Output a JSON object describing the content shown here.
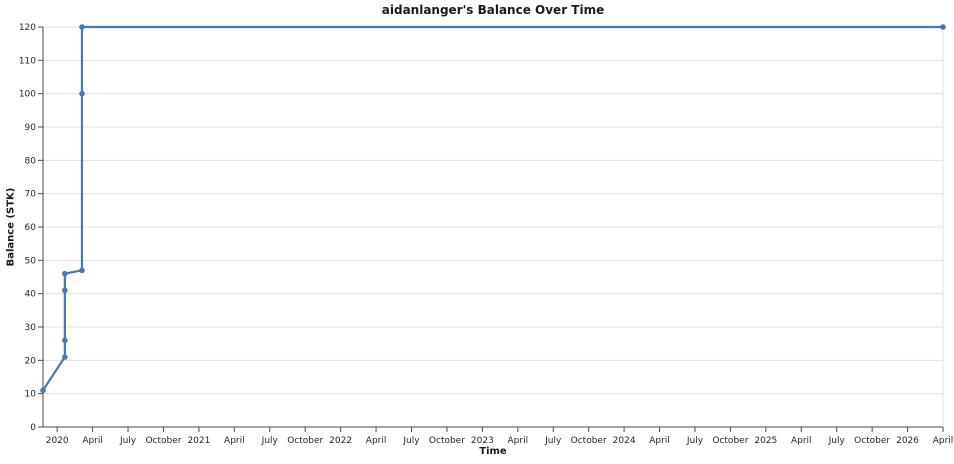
{
  "chart_data": {
    "type": "line",
    "title": "aidanlanger's Balance Over Time",
    "xlabel": "Time",
    "ylabel": "Balance (STK)",
    "grid": "horizontal",
    "legend": "none",
    "x_axis": {
      "unit": "months since January 2020",
      "range": [
        -1.2,
        75
      ],
      "ticks": [
        {
          "m": 0,
          "label": "2020"
        },
        {
          "m": 3,
          "label": "April"
        },
        {
          "m": 6,
          "label": "July"
        },
        {
          "m": 9,
          "label": "October"
        },
        {
          "m": 12,
          "label": "2021"
        },
        {
          "m": 15,
          "label": "April"
        },
        {
          "m": 18,
          "label": "July"
        },
        {
          "m": 21,
          "label": "October"
        },
        {
          "m": 24,
          "label": "2022"
        },
        {
          "m": 27,
          "label": "April"
        },
        {
          "m": 30,
          "label": "July"
        },
        {
          "m": 33,
          "label": "October"
        },
        {
          "m": 36,
          "label": "2023"
        },
        {
          "m": 39,
          "label": "April"
        },
        {
          "m": 42,
          "label": "July"
        },
        {
          "m": 45,
          "label": "October"
        },
        {
          "m": 48,
          "label": "2024"
        },
        {
          "m": 51,
          "label": "April"
        },
        {
          "m": 54,
          "label": "July"
        },
        {
          "m": 57,
          "label": "October"
        },
        {
          "m": 60,
          "label": "2025"
        },
        {
          "m": 63,
          "label": "April"
        },
        {
          "m": 66,
          "label": "July"
        },
        {
          "m": 69,
          "label": "October"
        },
        {
          "m": 72,
          "label": "2026"
        },
        {
          "m": 75,
          "label": "April"
        }
      ]
    },
    "y_axis": {
      "range": [
        0,
        120
      ],
      "tick_step": 10,
      "ticks": [
        0,
        10,
        20,
        30,
        40,
        50,
        60,
        70,
        80,
        90,
        100,
        110,
        120
      ]
    },
    "series": [
      {
        "name": "balance",
        "color": "#4c78ae",
        "points": [
          {
            "date": "2019-11",
            "m": -1.2,
            "value": 11
          },
          {
            "date": "2020-01",
            "m": 0.65,
            "value": 21
          },
          {
            "date": "2020-01",
            "m": 0.65,
            "value": 26
          },
          {
            "date": "2020-01",
            "m": 0.65,
            "value": 41
          },
          {
            "date": "2020-01",
            "m": 0.65,
            "value": 46
          },
          {
            "date": "2020-03",
            "m": 2.1,
            "value": 47
          },
          {
            "date": "2020-03",
            "m": 2.1,
            "value": 100
          },
          {
            "date": "2020-03",
            "m": 2.1,
            "value": 120
          },
          {
            "date": "2026-04",
            "m": 75.0,
            "value": 120
          }
        ]
      }
    ]
  },
  "colors": {
    "line": "#4c78ae",
    "grid": "#e0e0e0",
    "spine": "#4a4a4a",
    "tick_text": "#262626",
    "title_text": "#1a1a1a",
    "background": "#ffffff"
  }
}
